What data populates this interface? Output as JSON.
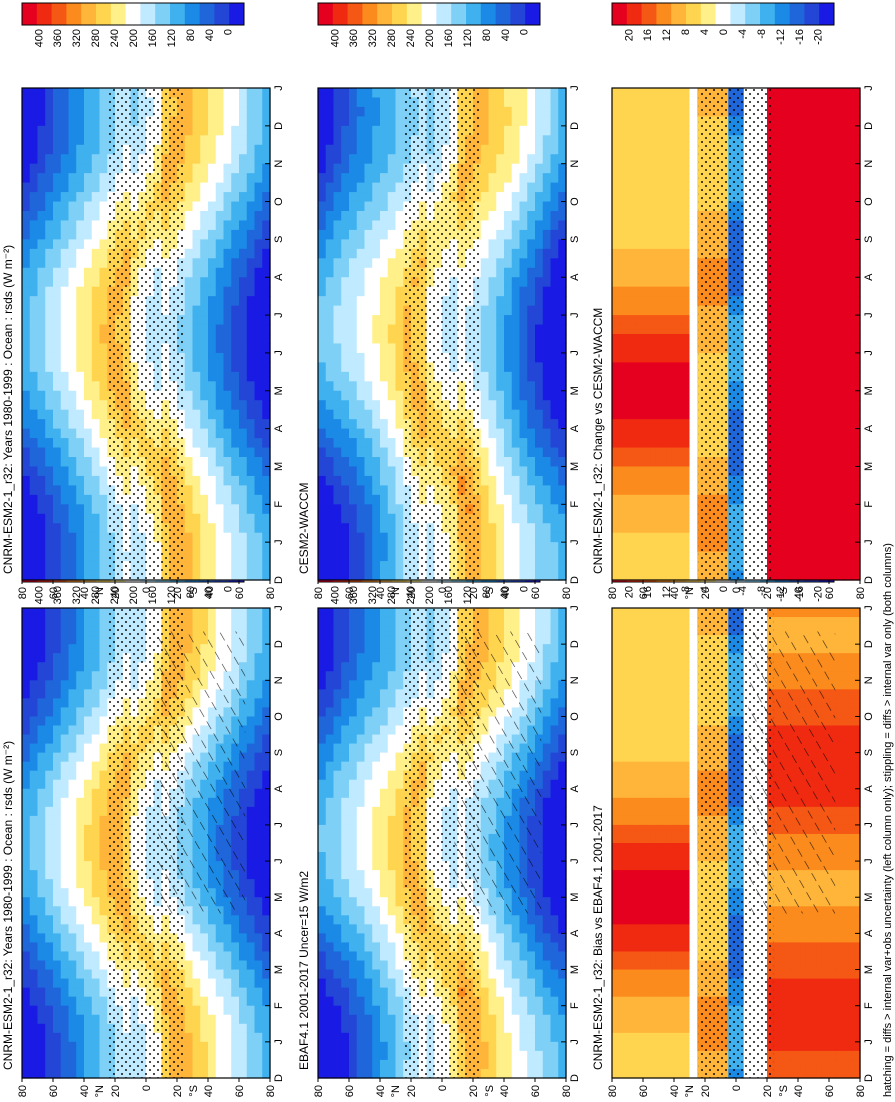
{
  "footer_note": "hatching = diffs > internal var+obs uncertainty (left column only); stippling = diffs > internal var only (both columns)",
  "chart_data": [
    {
      "type": "heatmap",
      "title": "CNRM-ESM2-1_r32: Years 1980-1999 : Ocean : rsds (W m⁻²)",
      "x_ticks": [
        "D",
        "J",
        "F",
        "M",
        "A",
        "M",
        "J",
        "J",
        "A",
        "S",
        "O",
        "N",
        "D",
        "J"
      ],
      "y_ticks": [
        "80",
        "60",
        "40",
        "20",
        "0",
        "20",
        "40",
        "60",
        "80"
      ],
      "y_hemi": [
        "°N",
        "°S"
      ],
      "colorbar_ticks": [
        "400",
        "360",
        "320",
        "280",
        "240",
        "200",
        "160",
        "120",
        "80",
        "40",
        "0"
      ],
      "colorbar_range": [
        0,
        420
      ],
      "colormap": "diverging-red-yellow-white-blue",
      "hatching": true,
      "stippling": true
    },
    {
      "type": "heatmap",
      "title": "CNRM-ESM2-1_r32: Years 1980-1999 : Ocean : rsds (W m⁻²)",
      "x_ticks": [
        "D",
        "J",
        "F",
        "M",
        "A",
        "M",
        "J",
        "J",
        "A",
        "S",
        "O",
        "N",
        "D",
        "J"
      ],
      "y_ticks": [
        "80",
        "60",
        "40",
        "20",
        "0",
        "20",
        "40",
        "60",
        "80"
      ],
      "y_hemi": [
        "°N",
        "°S"
      ],
      "colorbar_ticks": [
        "400",
        "360",
        "320",
        "280",
        "240",
        "200",
        "160",
        "120",
        "80",
        "40",
        "0"
      ],
      "colorbar_range": [
        0,
        420
      ],
      "colormap": "diverging-red-yellow-white-blue",
      "hatching": false,
      "stippling": true
    },
    {
      "type": "heatmap",
      "title": "EBAF4.1 2001-2017 Uncer=15 W/m2",
      "x_ticks": [
        "D",
        "J",
        "F",
        "M",
        "A",
        "M",
        "J",
        "J",
        "A",
        "S",
        "O",
        "N",
        "D",
        "J"
      ],
      "y_ticks": [
        "80",
        "60",
        "40",
        "20",
        "0",
        "20",
        "40",
        "60",
        "80"
      ],
      "y_hemi": [
        "°N",
        "°S"
      ],
      "colorbar_ticks": [
        "400",
        "360",
        "320",
        "280",
        "240",
        "200",
        "160",
        "120",
        "80",
        "40",
        "0"
      ],
      "colorbar_range": [
        0,
        420
      ],
      "colormap": "diverging-red-yellow-white-blue",
      "hatching": true,
      "stippling": true
    },
    {
      "type": "heatmap",
      "title": "CESM2-WACCM",
      "x_ticks": [
        "D",
        "J",
        "F",
        "M",
        "A",
        "M",
        "J",
        "J",
        "A",
        "S",
        "O",
        "N",
        "D",
        "J"
      ],
      "y_ticks": [
        "80",
        "60",
        "40",
        "20",
        "0",
        "20",
        "40",
        "60",
        "80"
      ],
      "y_hemi": [
        "°N",
        "°S"
      ],
      "colorbar_ticks": [
        "400",
        "360",
        "320",
        "280",
        "240",
        "200",
        "160",
        "120",
        "80",
        "40",
        "0"
      ],
      "colorbar_range": [
        0,
        420
      ],
      "colormap": "diverging-red-yellow-white-blue",
      "hatching": false,
      "stippling": true
    },
    {
      "type": "heatmap",
      "title": "CNRM-ESM2-1_r32: Bias vs EBAF4.1 2001-2017",
      "x_ticks": [
        "D",
        "J",
        "F",
        "M",
        "A",
        "M",
        "J",
        "J",
        "A",
        "S",
        "O",
        "N",
        "D",
        "J"
      ],
      "y_ticks": [
        "80",
        "60",
        "40",
        "20",
        "0",
        "20",
        "40",
        "60",
        "80"
      ],
      "y_hemi": [
        "°N",
        "°S"
      ],
      "colorbar_ticks": [
        "20",
        "16",
        "12",
        "8",
        "4",
        "0",
        "-4",
        "-8",
        "-12",
        "-16",
        "-20"
      ],
      "colorbar_range": [
        -22,
        22
      ],
      "colormap": "diverging-red-yellow-white-blue",
      "hatching": true,
      "stippling": true
    },
    {
      "type": "heatmap",
      "title": "CNRM-ESM2-1_r32: Change vs CESM2-WACCM",
      "x_ticks": [
        "D",
        "J",
        "F",
        "M",
        "A",
        "M",
        "J",
        "J",
        "A",
        "S",
        "O",
        "N",
        "D",
        "J"
      ],
      "y_ticks": [
        "80",
        "60",
        "40",
        "20",
        "0",
        "20",
        "40",
        "60",
        "80"
      ],
      "y_hemi": [
        "°N",
        "°S"
      ],
      "colorbar_ticks": [
        "20",
        "16",
        "12",
        "8",
        "4",
        "0",
        "-4",
        "-8",
        "-12",
        "-16",
        "-20"
      ],
      "colorbar_range": [
        -22,
        22
      ],
      "colormap": "diverging-red-yellow-white-blue",
      "hatching": false,
      "stippling": true
    }
  ]
}
